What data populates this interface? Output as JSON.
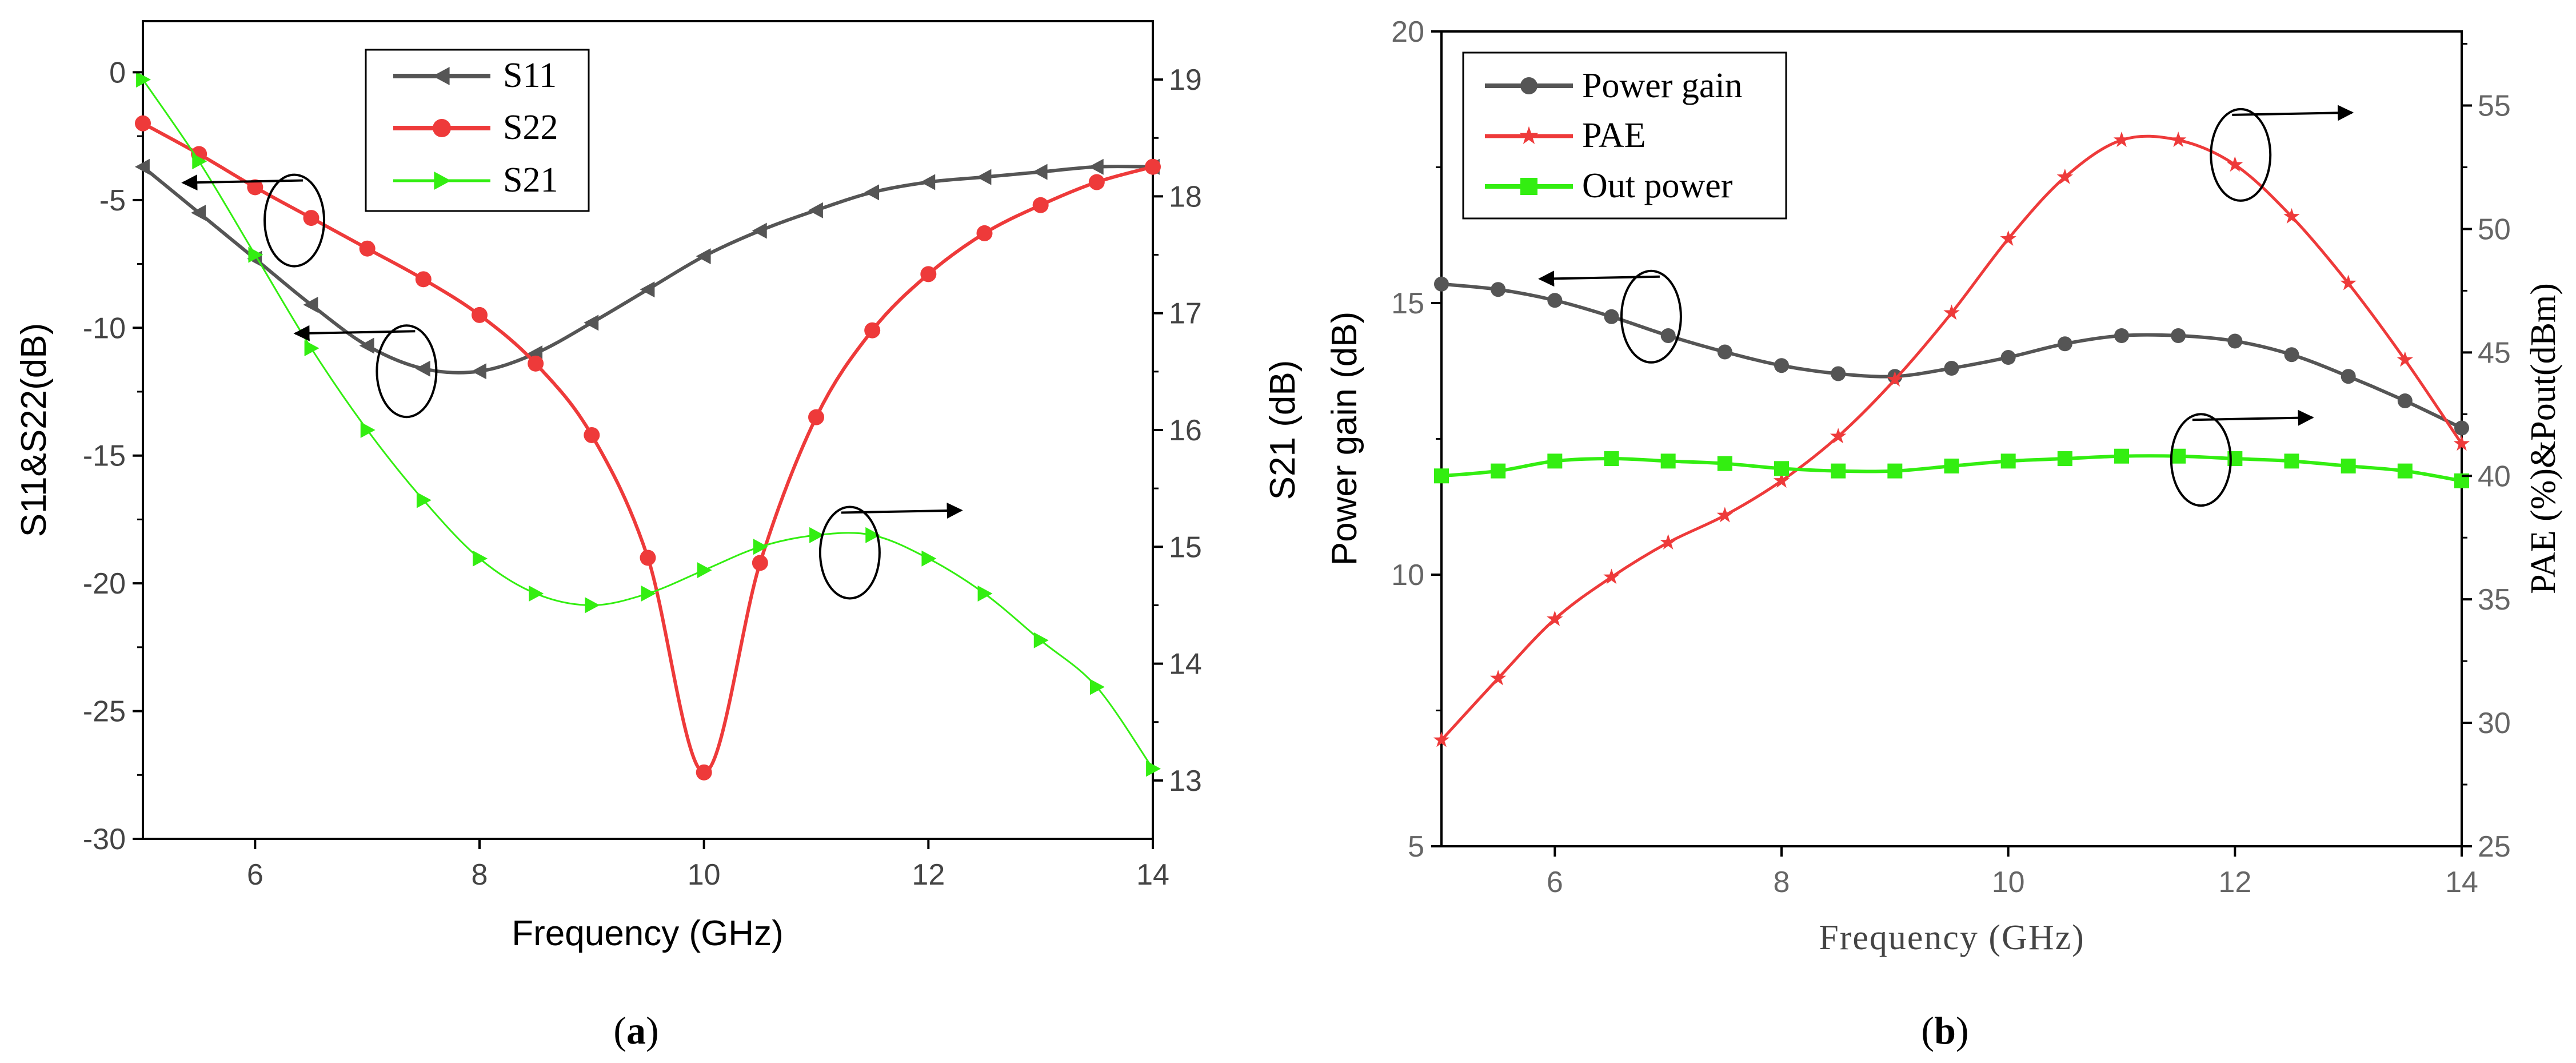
{
  "chart_data": [
    {
      "type": "line",
      "panel_label": "a",
      "xlabel": "Frequency (GHz)",
      "ylabel": "S11&S22(dB)",
      "y2label": "S21 (dB)",
      "xlim": [
        5,
        14
      ],
      "ylim": [
        -30,
        2
      ],
      "y2lim": [
        12.5,
        19.5
      ],
      "xticks": [
        6,
        8,
        10,
        12,
        14
      ],
      "yticks": [
        0,
        -5,
        -10,
        -15,
        -20,
        -25,
        -30
      ],
      "y2ticks": [
        13,
        14,
        15,
        16,
        17,
        18,
        19
      ],
      "xtick_labels": [
        "6",
        "8",
        "10",
        "12",
        "14"
      ],
      "ytick_labels": [
        "0",
        "-5",
        "-10",
        "-15",
        "-20",
        "-25",
        "-30"
      ],
      "y2tick_labels": [
        "13",
        "14",
        "15",
        "16",
        "17",
        "18",
        "19"
      ],
      "legend_position": "top-center",
      "series": [
        {
          "name": "S11",
          "axis": "left",
          "color": "#555555",
          "marker": "triangle-left",
          "x": [
            5,
            5.5,
            6,
            6.5,
            7,
            7.5,
            8,
            8.5,
            9,
            9.5,
            10,
            10.5,
            11,
            11.5,
            12,
            12.5,
            13,
            13.5,
            14
          ],
          "values": [
            -3.7,
            -5.5,
            -7.3,
            -9.1,
            -10.7,
            -11.6,
            -11.7,
            -11.0,
            -9.8,
            -8.5,
            -7.2,
            -6.2,
            -5.4,
            -4.7,
            -4.3,
            -4.1,
            -3.9,
            -3.7,
            -3.7
          ]
        },
        {
          "name": "S22",
          "axis": "left",
          "color": "#ee3a3a",
          "marker": "circle",
          "x": [
            5,
            5.5,
            6,
            6.5,
            7,
            7.5,
            8,
            8.5,
            9,
            9.5,
            10,
            10.5,
            11,
            11.5,
            12,
            12.5,
            13,
            13.5,
            14
          ],
          "values": [
            -2.0,
            -3.2,
            -4.5,
            -5.7,
            -6.9,
            -8.1,
            -9.5,
            -11.4,
            -14.2,
            -19.0,
            -27.4,
            -19.2,
            -13.5,
            -10.1,
            -7.9,
            -6.3,
            -5.2,
            -4.3,
            -3.7
          ]
        },
        {
          "name": "S21",
          "axis": "right",
          "color": "#33ee11",
          "marker": "triangle-right",
          "x": [
            5,
            5.5,
            6,
            6.5,
            7,
            7.5,
            8,
            8.5,
            9,
            9.5,
            10,
            10.5,
            11,
            11.5,
            12,
            12.5,
            13,
            13.5,
            14
          ],
          "values": [
            19.0,
            18.3,
            17.5,
            16.7,
            16.0,
            15.4,
            14.9,
            14.6,
            14.5,
            14.6,
            14.8,
            15.0,
            15.1,
            15.1,
            14.9,
            14.6,
            14.2,
            13.8,
            13.1
          ]
        }
      ],
      "annotations": [
        "arrow-left from ellipse near S22 (6.4, -5.4)",
        "arrow-left from ellipse near S11 (7.3, -11.5)",
        "arrow-right from ellipse near S21 (11.3, 15.0)"
      ]
    },
    {
      "type": "line",
      "panel_label": "b",
      "xlabel": "Frequency (GHz)",
      "ylabel": "Power gain (dB)",
      "y2label": "PAE (%)&Pout(dBm)",
      "xlim": [
        5,
        14
      ],
      "ylim": [
        5,
        20
      ],
      "y2lim": [
        25,
        58
      ],
      "xticks": [
        6,
        8,
        10,
        12,
        14
      ],
      "yticks": [
        5,
        10,
        15,
        20
      ],
      "y2ticks": [
        25,
        30,
        35,
        40,
        45,
        50,
        55
      ],
      "xtick_labels": [
        "6",
        "8",
        "10",
        "12",
        "14"
      ],
      "ytick_labels": [
        "5",
        "10",
        "15",
        "20"
      ],
      "y2tick_labels": [
        "25",
        "30",
        "35",
        "40",
        "45",
        "50",
        "55"
      ],
      "legend_position": "top-left",
      "series": [
        {
          "name": "Power gain",
          "axis": "left",
          "color": "#555555",
          "marker": "circle",
          "x": [
            5,
            5.5,
            6,
            6.5,
            7,
            7.5,
            8,
            8.5,
            9,
            9.5,
            10,
            10.5,
            11,
            11.5,
            12,
            12.5,
            13,
            13.5,
            14
          ],
          "values": [
            15.35,
            15.25,
            15.05,
            14.75,
            14.4,
            14.1,
            13.85,
            13.7,
            13.65,
            13.8,
            14.0,
            14.25,
            14.4,
            14.4,
            14.3,
            14.05,
            13.65,
            13.2,
            12.7
          ]
        },
        {
          "name": "PAE",
          "axis": "right",
          "color": "#ee3a3a",
          "marker": "star",
          "x": [
            5,
            5.5,
            6,
            6.5,
            7,
            7.5,
            8,
            8.5,
            9,
            9.5,
            10,
            10.5,
            11,
            11.5,
            12,
            12.5,
            13,
            13.5,
            14
          ],
          "values": [
            29.3,
            31.8,
            34.2,
            35.9,
            37.3,
            38.4,
            39.8,
            41.6,
            43.9,
            46.6,
            49.6,
            52.1,
            53.6,
            53.6,
            52.6,
            50.5,
            47.8,
            44.7,
            41.3
          ]
        },
        {
          "name": "Out power",
          "axis": "right",
          "color": "#33ee11",
          "marker": "square",
          "x": [
            5,
            5.5,
            6,
            6.5,
            7,
            7.5,
            8,
            8.5,
            9,
            9.5,
            10,
            10.5,
            11,
            11.5,
            12,
            12.5,
            13,
            13.5,
            14
          ],
          "values": [
            40.0,
            40.2,
            40.6,
            40.7,
            40.6,
            40.5,
            40.3,
            40.2,
            40.2,
            40.4,
            40.6,
            40.7,
            40.8,
            40.8,
            40.7,
            40.6,
            40.4,
            40.2,
            39.8
          ]
        }
      ],
      "annotations": [
        "arrow-left from ellipse near Power gain (6.8, 14.6)",
        "arrow-right from ellipse near PAE (12.0, 53.2)",
        "arrow-right from ellipse near Out power (11.7, 40.8)"
      ]
    }
  ]
}
